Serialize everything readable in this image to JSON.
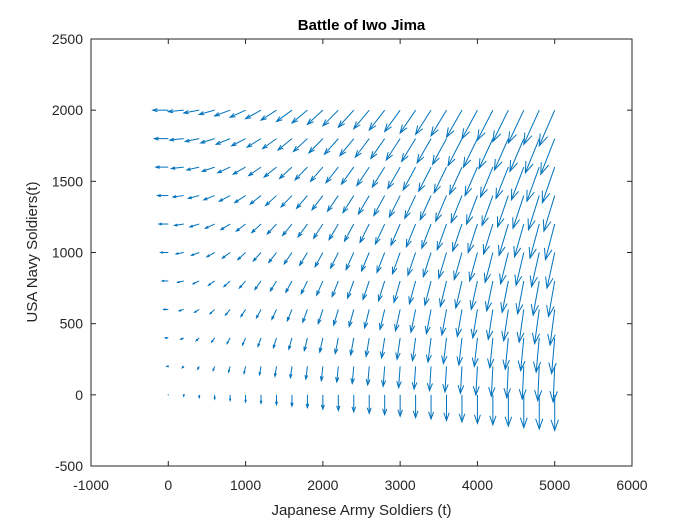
{
  "chart_data": {
    "type": "quiver",
    "title": "Battle of Iwo Jima",
    "xlabel": "Japanese Army Soldiers (t)",
    "ylabel": "USA Navy Soldiers(t)",
    "xlim": [
      -1000,
      6000
    ],
    "ylim": [
      -500,
      2500
    ],
    "xticks": [
      -1000,
      0,
      1000,
      2000,
      3000,
      4000,
      5000,
      6000
    ],
    "yticks": [
      -500,
      0,
      500,
      1000,
      1500,
      2000,
      2500
    ],
    "xtick_labels": [
      "-1000",
      "0",
      "1000",
      "2000",
      "3000",
      "4000",
      "5000",
      "6000"
    ],
    "ytick_labels": [
      "-500",
      "0",
      "500",
      "1000",
      "1500",
      "2000",
      "2500"
    ],
    "grid": false,
    "box": true,
    "arrow_color": "#0072bd",
    "x_grid_values": [
      0,
      200,
      400,
      600,
      800,
      1000,
      1200,
      1400,
      1600,
      1800,
      2000,
      2200,
      2400,
      2600,
      2800,
      3000,
      3200,
      3400,
      3600,
      3800,
      4000,
      4200,
      4400,
      4600,
      4800,
      5000
    ],
    "y_grid_values": [
      0,
      200,
      400,
      600,
      800,
      1000,
      1200,
      1400,
      1600,
      1800,
      2000
    ],
    "field": {
      "description": "dx proportional to -y, dy proportional to -x",
      "dx_per_y": -0.1,
      "dy_per_x": -0.05
    }
  }
}
